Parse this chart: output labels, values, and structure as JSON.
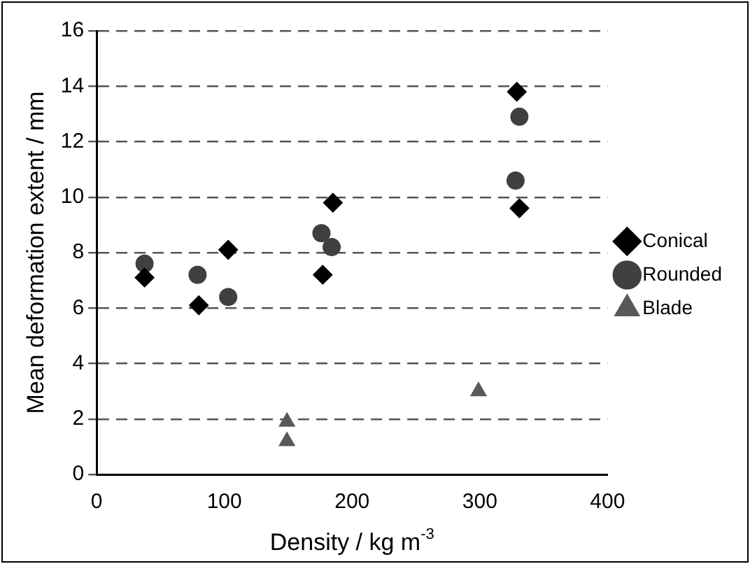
{
  "chart_data": {
    "type": "scatter",
    "xlabel": "Density / kg m$^{-3}$",
    "ylabel": "Mean deformation extent / mm",
    "xlim": [
      0,
      400
    ],
    "xticks": [
      0,
      100,
      200,
      300,
      400
    ],
    "ylim": [
      0,
      16
    ],
    "yticks": [
      0,
      2,
      4,
      6,
      8,
      10,
      12,
      14,
      16
    ],
    "grid": "y",
    "legend": "right",
    "series": [
      {
        "name": "Conical",
        "color": "#000000",
        "marker": "diamond",
        "x": [
          37.5,
          80,
          103,
          177,
          185,
          329,
          331
        ],
        "values": [
          7.1,
          6.1,
          8.1,
          7.2,
          9.8,
          13.8,
          9.6
        ]
      },
      {
        "name": "Rounded",
        "color": "#404040",
        "marker": "circle",
        "x": [
          37.5,
          79,
          103,
          176,
          184,
          328,
          331
        ],
        "values": [
          7.6,
          7.2,
          6.4,
          8.7,
          8.2,
          10.6,
          12.9
        ]
      },
      {
        "name": "Blade",
        "color": "#595959",
        "marker": "triangle",
        "x": [
          149,
          149,
          299
        ],
        "values": [
          1.9,
          1.2,
          3.0
        ]
      }
    ]
  }
}
